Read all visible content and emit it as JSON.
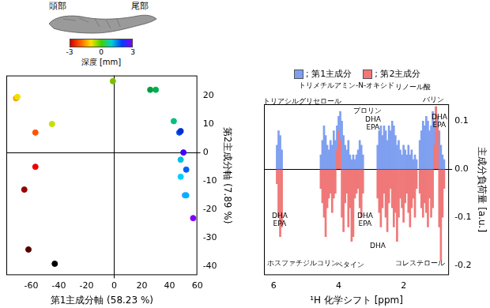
{
  "chart_data": [
    {
      "type": "scatter",
      "x_label": "第1主成分軸 (58.23 %)",
      "y_label": "第2主成分軸 (7.89 %)",
      "x": [
        -71,
        -70,
        -45,
        -57,
        -1,
        -57,
        -65,
        -62,
        -43,
        26,
        30,
        43,
        47,
        48,
        50,
        48,
        52,
        48,
        51,
        52,
        57
      ],
      "values": [
        19,
        19.5,
        10,
        7,
        25,
        -5,
        -13,
        -34,
        -39,
        22,
        22,
        11,
        7,
        7.5,
        0,
        -2.5,
        -6,
        -8.5,
        -15,
        -15,
        -23
      ],
      "colors": [
        "#f5a000",
        "#f0e000",
        "#c8e000",
        "#ff5500",
        "#7dbf00",
        "#ee0000",
        "#990000",
        "#550000",
        "#000000",
        "#00a040",
        "#00b050",
        "#00c080",
        "#0050ff",
        "#0030d0",
        "#4000ff",
        "#00c0e0",
        "#0060ff",
        "#00d0ff",
        "#40a0ff",
        "#00b0ff",
        "#8000ff"
      ],
      "xlim": [
        -78,
        60
      ],
      "xticks": [
        -60,
        -40,
        -20,
        0,
        20,
        40,
        60
      ],
      "ylim": [
        -43,
        27
      ],
      "yticks": [
        -40,
        -30,
        -20,
        -10,
        0,
        10,
        20
      ],
      "grid": false,
      "color_bar": {
        "title": "深度 [mm]",
        "range": [
          -3,
          3
        ],
        "ticks": [
          -3,
          0,
          3
        ],
        "labels": [
          "頭部",
          "尾部"
        ]
      }
    },
    {
      "type": "bar",
      "x_label": "¹H 化学シフト [ppm]",
      "y_label": "主成分負荷量 [a.u.]",
      "x": [
        5.9,
        5.85,
        5.8,
        5.75,
        4.55,
        4.5,
        4.45,
        4.4,
        4.35,
        4.3,
        4.25,
        4.2,
        4.15,
        4.1,
        4.05,
        4.0,
        3.95,
        3.9,
        3.85,
        3.8,
        3.75,
        3.7,
        3.65,
        3.6,
        3.55,
        3.5,
        3.45,
        3.4,
        3.35,
        3.3,
        3.25,
        2.8,
        2.75,
        2.7,
        2.65,
        2.6,
        2.55,
        2.5,
        2.45,
        2.4,
        2.35,
        2.3,
        2.25,
        2.2,
        2.15,
        2.1,
        2.05,
        2.0,
        1.95,
        1.9,
        1.85,
        1.8,
        1.75,
        1.7,
        1.65,
        1.6,
        1.5,
        1.45,
        1.4,
        1.35,
        1.3,
        1.25,
        1.2,
        1.15,
        1.1,
        1.05,
        1.0,
        0.95,
        0.9,
        0.85,
        0.8,
        0.75
      ],
      "series": [
        {
          "name": "; 第1主成分",
          "color": "#7f9ff0",
          "values": [
            0.05,
            0.08,
            0.07,
            0.04,
            0.03,
            0.06,
            0.09,
            0.07,
            0.05,
            0.04,
            0.06,
            0.05,
            0.08,
            0.06,
            0.09,
            0.11,
            0.12,
            0.1,
            0.07,
            0.05,
            0.04,
            0.06,
            0.03,
            0.02,
            0.03,
            0.02,
            0.03,
            0.04,
            0.06,
            0.05,
            0.03,
            0.05,
            0.08,
            0.09,
            0.07,
            0.09,
            0.08,
            0.06,
            0.09,
            0.08,
            0.1,
            0.09,
            0.07,
            0.05,
            0.06,
            0.04,
            0.03,
            0.05,
            0.04,
            0.03,
            0.05,
            0.03,
            0.04,
            0.02,
            0.03,
            0.02,
            0.06,
            0.08,
            0.1,
            0.09,
            0.11,
            0.1,
            0.08,
            0.09,
            0.12,
            0.1,
            0.13,
            0.11,
            0.08,
            0.05,
            0.03,
            0.02
          ]
        },
        {
          "name": "; 第2主成分",
          "color": "#f07878",
          "values": [
            -0.03,
            -0.1,
            -0.14,
            -0.12,
            -0.04,
            -0.07,
            -0.1,
            -0.14,
            -0.08,
            -0.06,
            -0.05,
            -0.09,
            -0.06,
            -0.05,
            0.04,
            0.08,
            0.06,
            -0.1,
            -0.13,
            -0.07,
            -0.05,
            -0.12,
            -0.08,
            -0.15,
            -0.14,
            -0.06,
            -0.05,
            -0.04,
            -0.08,
            -0.1,
            -0.05,
            -0.06,
            -0.09,
            -0.12,
            -0.08,
            -0.05,
            -0.1,
            -0.13,
            -0.07,
            -0.04,
            -0.08,
            -0.12,
            -0.09,
            -0.15,
            -0.1,
            -0.06,
            -0.08,
            -0.11,
            -0.07,
            -0.05,
            -0.09,
            -0.12,
            -0.08,
            -0.06,
            -0.1,
            -0.04,
            -0.05,
            -0.08,
            -0.1,
            -0.07,
            -0.09,
            -0.12,
            -0.06,
            -0.1,
            -0.08,
            0.05,
            0.13,
            0.09,
            -0.12,
            -0.19,
            -0.1,
            -0.04
          ]
        }
      ],
      "xlim": [
        6.3,
        0.6
      ],
      "xticks": [
        6,
        4,
        2
      ],
      "ylim": [
        -0.22,
        0.135
      ],
      "yticks": [
        -0.2,
        -0.1,
        {
          "value": 0,
          "label": "0.0"
        },
        0.1
      ],
      "grid": false,
      "annotations": [
        "トリアシルグリセロール",
        "トリメチルアミン-N-オキシド",
        "プロリン",
        "DHA\nEPA",
        "リノール酸",
        "バリン",
        "DHA\nEPA",
        "DHA\nEPA",
        "DHA\nEPA",
        "DHA",
        "ホスファチジルコリン",
        "ベタイン",
        "コレステロール"
      ]
    }
  ]
}
